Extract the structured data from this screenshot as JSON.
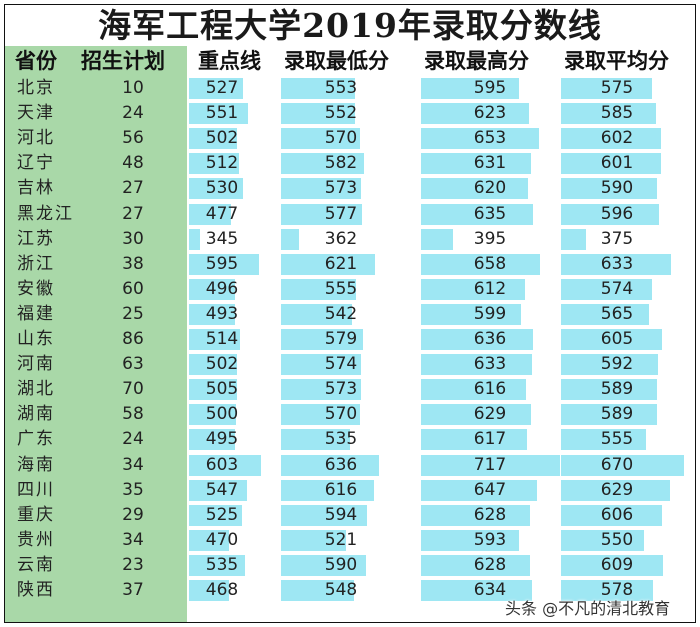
{
  "title": "海军工程大学2019年录取分数线",
  "headers": {
    "province": "省份",
    "plan": "招生计划",
    "key_line": "重点线",
    "min_score": "录取最低分",
    "max_score": "录取最高分",
    "avg_score": "录取平均分"
  },
  "colors": {
    "green_column": "#a9d8a8",
    "data_bar": "#9ee7f3"
  },
  "rows": [
    {
      "province": "北京",
      "plan": "10",
      "key_line": "527",
      "min_score": "553",
      "max_score": "595",
      "avg_score": "575"
    },
    {
      "province": "天津",
      "plan": "24",
      "key_line": "551",
      "min_score": "552",
      "max_score": "623",
      "avg_score": "585"
    },
    {
      "province": "河北",
      "plan": "56",
      "key_line": "502",
      "min_score": "570",
      "max_score": "653",
      "avg_score": "602"
    },
    {
      "province": "辽宁",
      "plan": "48",
      "key_line": "512",
      "min_score": "582",
      "max_score": "631",
      "avg_score": "601"
    },
    {
      "province": "吉林",
      "plan": "27",
      "key_line": "530",
      "min_score": "573",
      "max_score": "620",
      "avg_score": "590"
    },
    {
      "province": "黑龙江",
      "plan": "27",
      "key_line": "477",
      "min_score": "577",
      "max_score": "635",
      "avg_score": "596"
    },
    {
      "province": "江苏",
      "plan": "30",
      "key_line": "345",
      "min_score": "362",
      "max_score": "395",
      "avg_score": "375"
    },
    {
      "province": "浙江",
      "plan": "38",
      "key_line": "595",
      "min_score": "621",
      "max_score": "658",
      "avg_score": "633"
    },
    {
      "province": "安徽",
      "plan": "60",
      "key_line": "496",
      "min_score": "555",
      "max_score": "612",
      "avg_score": "574"
    },
    {
      "province": "福建",
      "plan": "25",
      "key_line": "493",
      "min_score": "542",
      "max_score": "599",
      "avg_score": "565"
    },
    {
      "province": "山东",
      "plan": "86",
      "key_line": "514",
      "min_score": "579",
      "max_score": "636",
      "avg_score": "605"
    },
    {
      "province": "河南",
      "plan": "63",
      "key_line": "502",
      "min_score": "574",
      "max_score": "633",
      "avg_score": "592"
    },
    {
      "province": "湖北",
      "plan": "70",
      "key_line": "505",
      "min_score": "573",
      "max_score": "616",
      "avg_score": "589"
    },
    {
      "province": "湖南",
      "plan": "58",
      "key_line": "500",
      "min_score": "570",
      "max_score": "629",
      "avg_score": "589"
    },
    {
      "province": "广东",
      "plan": "24",
      "key_line": "495",
      "min_score": "535",
      "max_score": "617",
      "avg_score": "555"
    },
    {
      "province": "海南",
      "plan": "34",
      "key_line": "603",
      "min_score": "636",
      "max_score": "717",
      "avg_score": "670"
    },
    {
      "province": "四川",
      "plan": "35",
      "key_line": "547",
      "min_score": "616",
      "max_score": "647",
      "avg_score": "629"
    },
    {
      "province": "重庆",
      "plan": "29",
      "key_line": "525",
      "min_score": "594",
      "max_score": "628",
      "avg_score": "606"
    },
    {
      "province": "贵州",
      "plan": "34",
      "key_line": "470",
      "min_score": "521",
      "max_score": "593",
      "avg_score": "550"
    },
    {
      "province": "云南",
      "plan": "23",
      "key_line": "535",
      "min_score": "590",
      "max_score": "628",
      "avg_score": "609"
    },
    {
      "province": "陕西",
      "plan": "37",
      "key_line": "468",
      "min_score": "548",
      "max_score": "634",
      "avg_score": "578"
    }
  ],
  "watermark": "头条 @不凡的清北教育"
}
